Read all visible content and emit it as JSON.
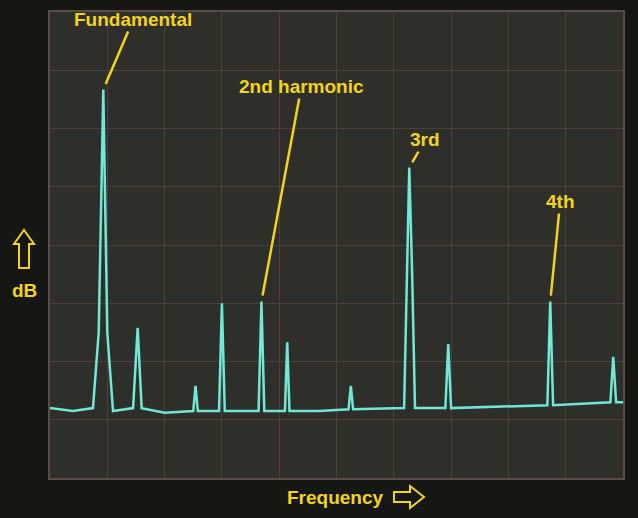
{
  "chart_data": {
    "type": "line",
    "xlabel": "Frequency",
    "ylabel": "dB",
    "x": [
      0,
      0.4,
      0.75,
      0.85,
      0.93,
      1.0,
      1.1,
      1.45,
      1.53,
      1.6,
      2.0,
      2.5,
      2.54,
      2.58,
      2.95,
      3.0,
      3.05,
      3.64,
      3.69,
      3.74,
      4.1,
      4.14,
      4.18,
      4.7,
      5.21,
      5.25,
      5.29,
      6.18,
      6.23,
      6.27,
      6.32,
      6.37,
      6.9,
      6.95,
      7.0,
      7.8,
      8.68,
      8.73,
      8.78,
      9.78,
      9.83,
      9.88,
      10
    ],
    "values": [
      1.2,
      1.15,
      1.2,
      2.5,
      6.67,
      2.5,
      1.15,
      1.2,
      2.58,
      1.2,
      1.12,
      1.15,
      1.58,
      1.15,
      1.15,
      3.0,
      1.15,
      1.15,
      3.03,
      1.15,
      1.15,
      2.33,
      1.15,
      1.15,
      1.18,
      1.58,
      1.18,
      1.2,
      3.5,
      5.33,
      3.5,
      1.2,
      1.2,
      2.3,
      1.2,
      1.22,
      1.25,
      3.03,
      1.25,
      1.3,
      2.08,
      1.3,
      1.3
    ],
    "color": "#6fe8d8",
    "xlim": [
      0,
      10
    ],
    "ylim": [
      0,
      8
    ],
    "xticks": [
      0,
      1,
      2,
      3,
      4,
      5,
      6,
      7,
      8,
      9,
      10
    ],
    "yticks": [
      0,
      1,
      2,
      3,
      4,
      5,
      6,
      7,
      8
    ],
    "grid": true,
    "tick_labels": false,
    "annotations": [
      {
        "text": "Fundamental",
        "x": 0.93,
        "y": 6.67
      },
      {
        "text": "2nd harmonic",
        "x": 3.69,
        "y": 3.03
      },
      {
        "text": "3rd",
        "x": 6.27,
        "y": 5.33
      },
      {
        "text": "4th",
        "x": 8.73,
        "y": 3.03
      }
    ]
  }
}
